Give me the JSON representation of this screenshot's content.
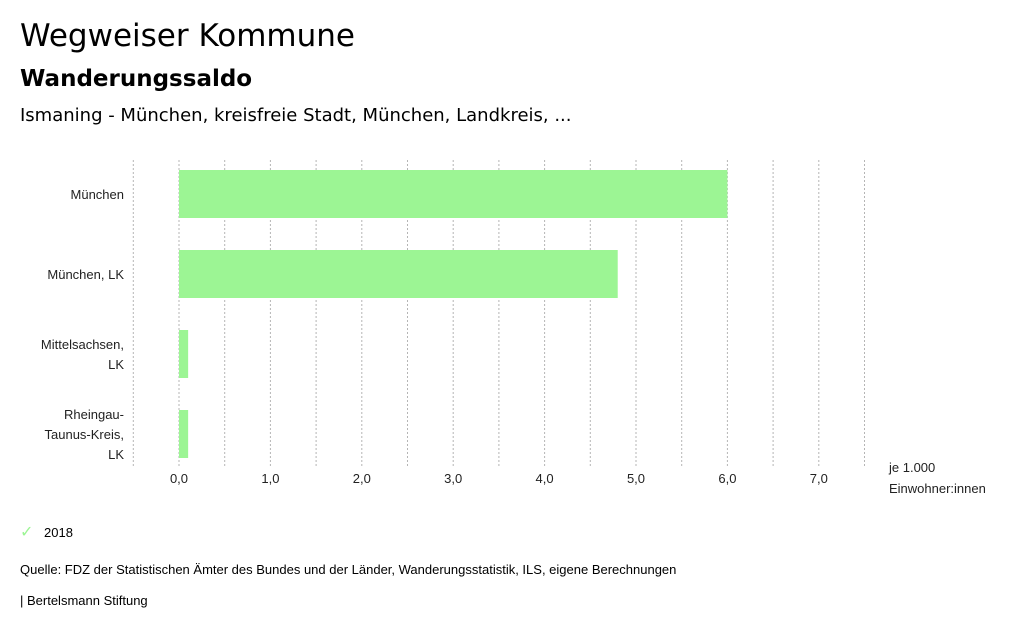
{
  "header": {
    "title": "Wegweiser Kommune",
    "subtitle": "Wanderungssaldo",
    "region": "Ismaning - München, kreisfreie Stadt, München, Landkreis, ..."
  },
  "chart_data": {
    "type": "bar",
    "orientation": "horizontal",
    "categories": [
      "München",
      "München, LK",
      "Mittelsachsen, LK",
      "Rheingau-Taunus-Kreis, LK"
    ],
    "category_lines": [
      [
        "München"
      ],
      [
        "München, LK"
      ],
      [
        "Mittelsachsen,",
        "LK"
      ],
      [
        "Rheingau-",
        "Taunus-Kreis,",
        "LK"
      ]
    ],
    "series": [
      {
        "name": "2018",
        "values": [
          6.0,
          4.8,
          0.1,
          0.1
        ]
      }
    ],
    "xlim": [
      -0.5,
      7.5
    ],
    "xticks": [
      0,
      1,
      2,
      3,
      4,
      5,
      6,
      7
    ],
    "xtick_labels": [
      "0,0",
      "1,0",
      "2,0",
      "3,0",
      "4,0",
      "5,0",
      "6,0",
      "7,0"
    ],
    "xlabel_lines": [
      "je 1.000",
      "Einwohner:innen"
    ],
    "bar_color": "#9cf594",
    "grid": true
  },
  "legend": {
    "label": "2018",
    "icon": "check-icon",
    "color": "#9cf594"
  },
  "footer": {
    "source": "Quelle: FDZ der Statistischen Ämter des Bundes und der Länder, Wanderungsstatistik, ILS, eigene Berechnungen",
    "publisher": "| Bertelsmann Stiftung"
  }
}
